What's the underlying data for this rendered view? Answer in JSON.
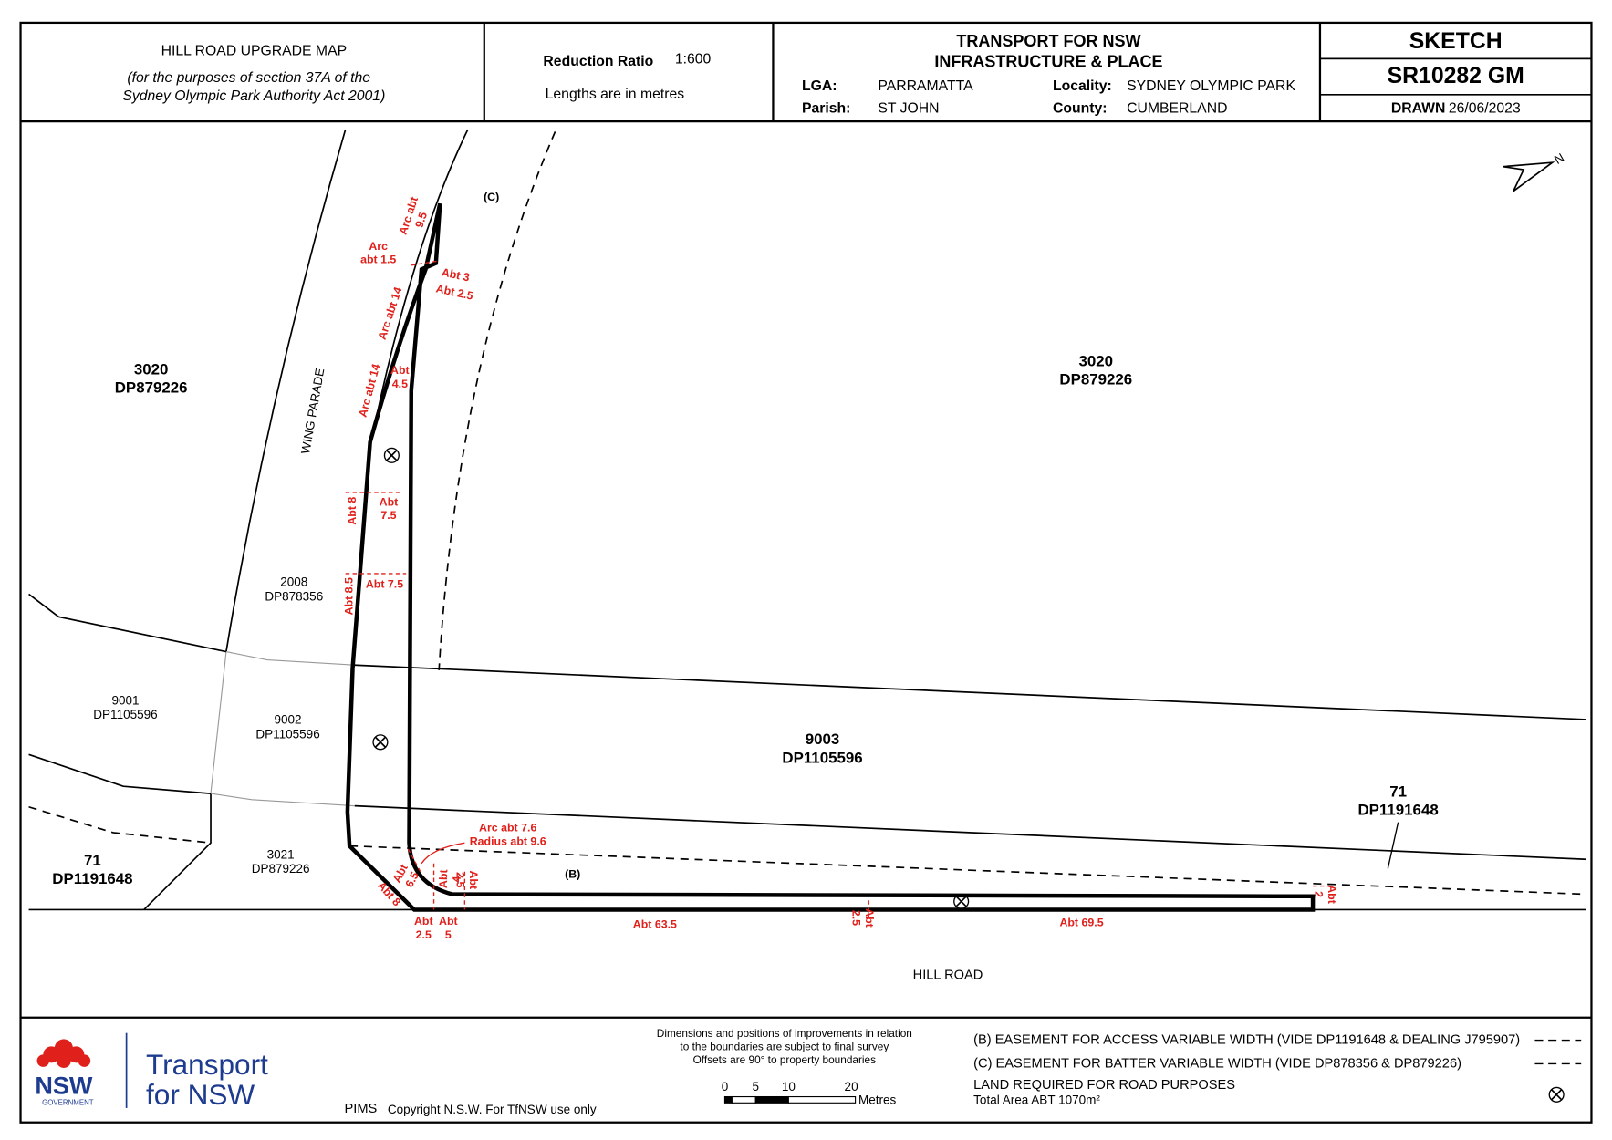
{
  "header": {
    "title": "HILL ROAD UPGRADE MAP",
    "subtitle_lines": [
      "(for the purposes of section 37A of the",
      "Sydney Olympic Park Authority Act 2001)"
    ],
    "reduction_ratio_label": "Reduction Ratio",
    "reduction_ratio": "1:600",
    "lengths_note": "Lengths are in metres",
    "agency": "TRANSPORT FOR NSW",
    "division": "INFRASTRUCTURE & PLACE",
    "lga_label": "LGA:",
    "lga": "PARRAMATTA",
    "locality_label": "Locality:",
    "locality": "SYDNEY OLYMPIC PARK",
    "parish_label": "Parish:",
    "parish": "ST JOHN",
    "county_label": "County:",
    "county": "CUMBERLAND",
    "sketch": "SKETCH",
    "sketch_number": "SR10282 GM",
    "drawn_label": "DRAWN",
    "drawn_date": "26/06/2023"
  },
  "map": {
    "lots": [
      {
        "lot": "3020",
        "plan": "DP879226"
      },
      {
        "lot": "3020",
        "plan": "DP879226"
      },
      {
        "lot": "2008",
        "plan": "DP878356"
      },
      {
        "lot": "9001",
        "plan": "DP1105596"
      },
      {
        "lot": "9002",
        "plan": "DP1105596"
      },
      {
        "lot": "9003",
        "plan": "DP1105596"
      },
      {
        "lot": "71",
        "plan": "DP1191648"
      },
      {
        "lot": "71",
        "plan": "DP1191648"
      },
      {
        "lot": "3021",
        "plan": "DP879226"
      }
    ],
    "roads": [
      "WING PARADE",
      "HILL ROAD"
    ],
    "easement_tags": [
      "(C)",
      "(B)"
    ],
    "north": "N",
    "dimensions": [
      [
        "Arc abt",
        "9.5"
      ],
      [
        "Arc",
        "abt 1.5"
      ],
      [
        "Abt 3"
      ],
      [
        "Abt 2.5"
      ],
      [
        "Arc abt 14"
      ],
      [
        "Abt",
        "4.5"
      ],
      [
        "Arc abt 14"
      ],
      [
        "Abt 8"
      ],
      [
        "Abt",
        "7.5"
      ],
      [
        "Abt 8.5"
      ],
      [
        "Abt 7.5"
      ],
      [
        "Arc abt 7.6",
        "Radius abt 9.6"
      ],
      [
        "Abt",
        "6.5"
      ],
      [
        "Abt",
        "4"
      ],
      [
        "Abt",
        "2.5"
      ],
      [
        "Abt 8"
      ],
      [
        "Abt",
        "2.5"
      ],
      [
        "Abt",
        "5"
      ],
      [
        "Abt 63.5"
      ],
      [
        "Abt",
        "2.5"
      ],
      [
        "Abt 69.5"
      ],
      [
        "Abt",
        "2"
      ]
    ]
  },
  "footer": {
    "notes": [
      "Dimensions and positions of improvements in relation",
      "to the boundaries are subject to final survey",
      "Offsets are 90° to property boundaries"
    ],
    "scale_labels": [
      "0",
      "5",
      "10",
      "20",
      "Metres"
    ],
    "legend": [
      "(B) EASEMENT FOR ACCESS VARIABLE WIDTH (VIDE DP1191648 & DEALING J795907)",
      "(C) EASEMENT FOR BATTER VARIABLE WIDTH (VIDE DP878356 & DP879226)",
      "LAND REQUIRED FOR ROAD PURPOSES",
      "Total Area ABT 1070m²"
    ],
    "pims": "PIMS",
    "copyright": "Copyright N.S.W. For TfNSW use only",
    "logo": {
      "nsw": "NSW",
      "government": "GOVERNMENT",
      "transport": "Transport",
      "for_nsw": "for NSW"
    }
  }
}
